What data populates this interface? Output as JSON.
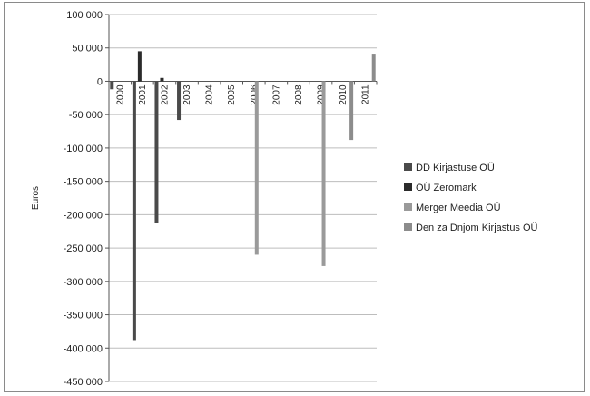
{
  "chart_data": {
    "type": "bar",
    "title": "",
    "xlabel": "",
    "ylabel": "Euros",
    "ylim": [
      -450000,
      100000
    ],
    "yticks": [
      100000,
      50000,
      0,
      -50000,
      -100000,
      -150000,
      -200000,
      -250000,
      -300000,
      -350000,
      -400000,
      -450000
    ],
    "ytick_labels": [
      "100 000",
      "50 000",
      "0",
      "-50 000",
      "-100 000",
      "-150 000",
      "-200 000",
      "-250 000",
      "-300 000",
      "-350 000",
      "-400 000",
      "-450 000"
    ],
    "categories": [
      "2000",
      "2001",
      "2002",
      "2003",
      "2004",
      "2005",
      "2006",
      "2007",
      "2008",
      "2009",
      "2010",
      "2011"
    ],
    "grid": true,
    "legend_position": "right",
    "series": [
      {
        "name": "DD Kirjastuse OÜ",
        "color": "#4a4a4a",
        "values": [
          -12000,
          -388000,
          -212000,
          -58000,
          null,
          null,
          null,
          null,
          null,
          null,
          null,
          null
        ]
      },
      {
        "name": "OÜ Zeromark",
        "color": "#2b2b2b",
        "values": [
          null,
          45000,
          5000,
          null,
          null,
          null,
          null,
          null,
          null,
          null,
          null,
          null
        ]
      },
      {
        "name": "Merger Meedia OÜ",
        "color": "#9a9a9a",
        "values": [
          null,
          null,
          null,
          null,
          null,
          null,
          -260000,
          null,
          null,
          -277000,
          null,
          null
        ]
      },
      {
        "name": "Den za Dnjom Kirjastus OÜ",
        "color": "#8c8c8c",
        "values": [
          null,
          null,
          null,
          null,
          null,
          null,
          null,
          null,
          null,
          null,
          -88000,
          40000
        ]
      }
    ]
  }
}
